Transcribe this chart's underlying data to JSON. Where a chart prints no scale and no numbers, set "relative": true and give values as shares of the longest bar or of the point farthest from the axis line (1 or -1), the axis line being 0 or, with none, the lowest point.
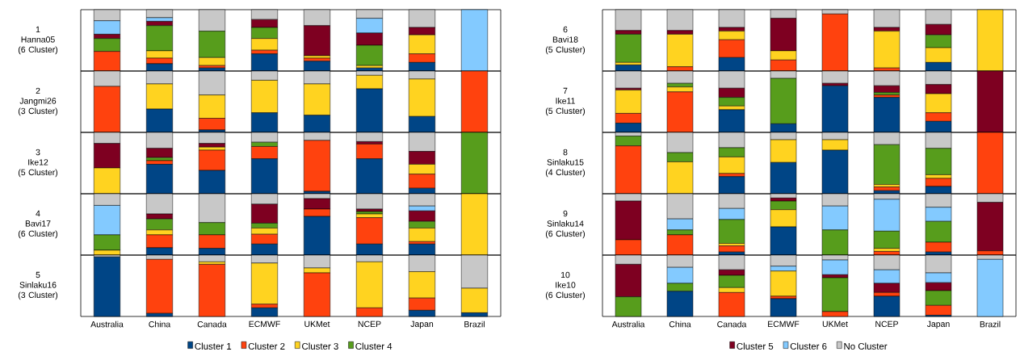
{
  "chart_data": [
    {
      "type": "bar",
      "stacked": true,
      "relative": true,
      "tick_labels": false,
      "title": "1",
      "subtitle": "Hanna05",
      "annotations": [
        "(6 Cluster)"
      ],
      "categories": [
        null,
        null,
        null,
        null,
        null,
        null,
        null,
        null
      ],
      "series": [
        {
          "color": "#004586",
          "values": [
            0,
            0.12,
            0.05,
            0.28,
            0.16,
            0.05,
            0.14,
            0
          ]
        },
        {
          "color": "#ff420e",
          "values": [
            0.32,
            0.09,
            0.04,
            0.06,
            0.05,
            0,
            0.14,
            0
          ]
        },
        {
          "color": "#ffd320",
          "values": [
            0,
            0.12,
            0.13,
            0.19,
            0.04,
            0.04,
            0.31,
            0
          ]
        },
        {
          "color": "#579d1c",
          "values": [
            0.21,
            0.41,
            0.43,
            0.18,
            0,
            0.33,
            0,
            0
          ]
        },
        {
          "color": "#7e0021",
          "values": [
            0.07,
            0.07,
            0,
            0.13,
            0.49,
            0.2,
            0.12,
            0
          ]
        },
        {
          "color": "#83caff",
          "values": [
            0.22,
            0.06,
            0,
            0,
            0,
            0.24,
            0,
            1
          ]
        },
        {
          "color": "#c8c8c8",
          "values": [
            0.18,
            0.13,
            0.35,
            0.16,
            0.26,
            0.14,
            0.29,
            0
          ]
        }
      ]
    },
    {
      "type": "bar",
      "stacked": true,
      "relative": true,
      "tick_labels": false,
      "title": "2",
      "subtitle": "Jangmi26",
      "annotations": [
        "(3 Cluster)"
      ],
      "categories": [
        null,
        null,
        null,
        null,
        null,
        null,
        null,
        null
      ],
      "series": [
        {
          "color": "#004586",
          "values": [
            0,
            0.38,
            0.04,
            0.32,
            0.28,
            0.71,
            0.26,
            0
          ]
        },
        {
          "color": "#ff420e",
          "values": [
            0.75,
            0,
            0.19,
            0,
            0,
            0,
            0,
            1
          ]
        },
        {
          "color": "#ffd320",
          "values": [
            0,
            0.41,
            0.38,
            0.53,
            0.51,
            0.22,
            0.61,
            0
          ]
        },
        {
          "color": "#579d1c",
          "values": [
            0,
            0,
            0,
            0,
            0,
            0,
            0,
            0
          ]
        },
        {
          "color": "#7e0021",
          "values": [
            0,
            0,
            0,
            0,
            0,
            0,
            0,
            0
          ]
        },
        {
          "color": "#83caff",
          "values": [
            0,
            0,
            0,
            0,
            0,
            0,
            0,
            0
          ]
        },
        {
          "color": "#c8c8c8",
          "values": [
            0.25,
            0.21,
            0.39,
            0.15,
            0.21,
            0.07,
            0.13,
            0
          ]
        }
      ]
    },
    {
      "type": "bar",
      "stacked": true,
      "relative": true,
      "tick_labels": false,
      "title": "3",
      "subtitle": "Ike12",
      "annotations": [
        "(5 Cluster)"
      ],
      "categories": [
        null,
        null,
        null,
        null,
        null,
        null,
        null,
        null
      ],
      "series": [
        {
          "color": "#004586",
          "values": [
            0,
            0.48,
            0.38,
            0.57,
            0.04,
            0.57,
            0.09,
            0
          ]
        },
        {
          "color": "#ff420e",
          "values": [
            0,
            0.06,
            0.33,
            0.2,
            0.83,
            0.24,
            0.23,
            0
          ]
        },
        {
          "color": "#ffd320",
          "values": [
            0.42,
            0,
            0.05,
            0,
            0,
            0,
            0.16,
            0
          ]
        },
        {
          "color": "#579d1c",
          "values": [
            0,
            0.05,
            0,
            0.07,
            0,
            0,
            0,
            1
          ]
        },
        {
          "color": "#7e0021",
          "values": [
            0.4,
            0.15,
            0.06,
            0,
            0,
            0.04,
            0.21,
            0
          ]
        },
        {
          "color": "#83caff",
          "values": [
            0,
            0,
            0,
            0,
            0,
            0,
            0,
            0
          ]
        },
        {
          "color": "#c8c8c8",
          "values": [
            0.18,
            0.26,
            0.18,
            0.16,
            0.13,
            0.15,
            0.31,
            0
          ]
        }
      ]
    },
    {
      "type": "bar",
      "stacked": true,
      "relative": true,
      "tick_labels": false,
      "title": "4",
      "subtitle": "Bavi17",
      "annotations": [
        "(6 Cluster)"
      ],
      "categories": [
        null,
        null,
        null,
        null,
        null,
        null,
        null,
        null
      ],
      "series": [
        {
          "color": "#004586",
          "values": [
            0,
            0.12,
            0.11,
            0.18,
            0.63,
            0.18,
            0.18,
            0
          ]
        },
        {
          "color": "#ff420e",
          "values": [
            0,
            0.21,
            0.22,
            0.16,
            0.12,
            0.43,
            0.04,
            0
          ]
        },
        {
          "color": "#ffd320",
          "values": [
            0.08,
            0.08,
            0,
            0.1,
            0,
            0.06,
            0.22,
            1
          ]
        },
        {
          "color": "#579d1c",
          "values": [
            0.25,
            0.18,
            0.2,
            0.08,
            0,
            0.04,
            0.11,
            0
          ]
        },
        {
          "color": "#7e0021",
          "values": [
            0,
            0.08,
            0,
            0.31,
            0.17,
            0.04,
            0.17,
            0
          ]
        },
        {
          "color": "#83caff",
          "values": [
            0.48,
            0,
            0,
            0,
            0,
            0,
            0.08,
            0
          ]
        },
        {
          "color": "#c8c8c8",
          "values": [
            0.19,
            0.33,
            0.47,
            0.17,
            0.08,
            0.25,
            0.2,
            0
          ]
        }
      ]
    },
    {
      "type": "bar",
      "stacked": true,
      "relative": true,
      "tick_labels": "x",
      "legend": "bottom",
      "title": "5",
      "subtitle": "Sinlaku16",
      "annotations": [
        "(3 Cluster)"
      ],
      "categories": [
        "Australia",
        "China",
        "Canada",
        "ECMWF",
        "UKMet",
        "NCEP",
        "Japan",
        "Brazil"
      ],
      "series": [
        {
          "name": "Cluster 1",
          "color": "#004586",
          "values": [
            0.97,
            0.05,
            0,
            0.14,
            0,
            0,
            0.1,
            0.06
          ]
        },
        {
          "name": "Cluster 2",
          "color": "#ff420e",
          "values": [
            0,
            0.88,
            0.85,
            0.06,
            0.71,
            0.14,
            0.2,
            0
          ]
        },
        {
          "name": "Cluster 3",
          "color": "#ffd320",
          "values": [
            0,
            0,
            0.04,
            0.67,
            0.08,
            0.75,
            0.43,
            0.4
          ]
        },
        {
          "name": "Cluster 4",
          "color": "#579d1c",
          "values": [
            0,
            0,
            0,
            0,
            0,
            0,
            0,
            0
          ]
        },
        {
          "color": "#7e0021",
          "values": [
            0,
            0,
            0,
            0,
            0,
            0,
            0,
            0
          ]
        },
        {
          "color": "#83caff",
          "values": [
            0,
            0,
            0,
            0,
            0,
            0,
            0,
            0
          ]
        },
        {
          "color": "#c8c8c8",
          "values": [
            0.03,
            0.07,
            0.11,
            0.13,
            0.21,
            0.11,
            0.27,
            0.54
          ]
        }
      ]
    },
    {
      "type": "bar",
      "stacked": true,
      "relative": true,
      "tick_labels": false,
      "title": "6",
      "subtitle": "Bavi18",
      "annotations": [
        "(5 Cluster)"
      ],
      "categories": [
        null,
        null,
        null,
        null,
        null,
        null,
        null,
        null
      ],
      "series": [
        {
          "color": "#004586",
          "values": [
            0.1,
            0,
            0.22,
            0,
            0,
            0,
            0.14,
            0
          ]
        },
        {
          "color": "#ff420e",
          "values": [
            0,
            0.07,
            0.29,
            0.18,
            0.93,
            0.05,
            0,
            0
          ]
        },
        {
          "color": "#ffd320",
          "values": [
            0.04,
            0.53,
            0.14,
            0.15,
            0,
            0.6,
            0.24,
            1
          ]
        },
        {
          "color": "#579d1c",
          "values": [
            0.46,
            0,
            0,
            0,
            0,
            0,
            0.21,
            0
          ]
        },
        {
          "color": "#7e0021",
          "values": [
            0.06,
            0.06,
            0.06,
            0.53,
            0,
            0.06,
            0.17,
            0
          ]
        },
        {
          "color": "#83caff",
          "values": [
            0,
            0,
            0,
            0,
            0,
            0,
            0,
            0
          ]
        },
        {
          "color": "#c8c8c8",
          "values": [
            0.34,
            0.34,
            0.29,
            0.14,
            0.07,
            0.29,
            0.24,
            0
          ]
        }
      ]
    },
    {
      "type": "bar",
      "stacked": true,
      "relative": true,
      "tick_labels": false,
      "title": "7",
      "subtitle": "Ike11",
      "annotations": [
        "(5 Cluster)"
      ],
      "categories": [
        null,
        null,
        null,
        null,
        null,
        null,
        null,
        null
      ],
      "series": [
        {
          "color": "#004586",
          "values": [
            0.15,
            0,
            0.37,
            0.14,
            0.76,
            0.57,
            0.18,
            0
          ]
        },
        {
          "color": "#ff420e",
          "values": [
            0.16,
            0.66,
            0,
            0,
            0,
            0.04,
            0.14,
            0
          ]
        },
        {
          "color": "#ffd320",
          "values": [
            0.38,
            0.08,
            0.06,
            0,
            0,
            0,
            0.31,
            0
          ]
        },
        {
          "color": "#579d1c",
          "values": [
            0,
            0.06,
            0.14,
            0.74,
            0,
            0.04,
            0,
            0
          ]
        },
        {
          "color": "#7e0021",
          "values": [
            0.03,
            0,
            0.15,
            0,
            0.04,
            0.11,
            0.15,
            1
          ]
        },
        {
          "color": "#83caff",
          "values": [
            0,
            0,
            0,
            0,
            0,
            0,
            0,
            0
          ]
        },
        {
          "color": "#c8c8c8",
          "values": [
            0.28,
            0.2,
            0.28,
            0.12,
            0.2,
            0.24,
            0.22,
            0
          ]
        }
      ]
    },
    {
      "type": "bar",
      "stacked": true,
      "relative": true,
      "tick_labels": false,
      "title": "8",
      "subtitle": "Sinlaku15",
      "annotations": [
        "(4 Cluster)"
      ],
      "categories": [
        null,
        null,
        null,
        null,
        null,
        null,
        null,
        null
      ],
      "series": [
        {
          "color": "#004586",
          "values": [
            0,
            0,
            0.28,
            0.51,
            0.71,
            0.05,
            0.12,
            0
          ]
        },
        {
          "color": "#ff420e",
          "values": [
            0.78,
            0,
            0.05,
            0,
            0,
            0.06,
            0.13,
            1
          ]
        },
        {
          "color": "#ffd320",
          "values": [
            0,
            0.52,
            0.27,
            0.37,
            0.17,
            0.04,
            0.06,
            0
          ]
        },
        {
          "color": "#579d1c",
          "values": [
            0.16,
            0.15,
            0.15,
            0,
            0,
            0.65,
            0.43,
            0
          ]
        },
        {
          "color": "#7e0021",
          "values": [
            0,
            0,
            0,
            0,
            0,
            0,
            0,
            0
          ]
        },
        {
          "color": "#83caff",
          "values": [
            0,
            0,
            0,
            0,
            0,
            0,
            0,
            0
          ]
        },
        {
          "color": "#c8c8c8",
          "values": [
            0.06,
            0.33,
            0.25,
            0.12,
            0.12,
            0.2,
            0.26,
            0
          ]
        }
      ]
    },
    {
      "type": "bar",
      "stacked": true,
      "relative": true,
      "tick_labels": false,
      "title": "9",
      "subtitle": "Sinlaku14",
      "annotations": [
        "(6 Cluster)"
      ],
      "categories": [
        null,
        null,
        null,
        null,
        null,
        null,
        null,
        null
      ],
      "series": [
        {
          "color": "#004586",
          "values": [
            0,
            0,
            0.05,
            0.46,
            0,
            0,
            0.05,
            0
          ]
        },
        {
          "color": "#ff420e",
          "values": [
            0.25,
            0.33,
            0.1,
            0,
            0,
            0.06,
            0.16,
            0.07
          ]
        },
        {
          "color": "#ffd320",
          "values": [
            0,
            0,
            0.04,
            0.28,
            0,
            0.05,
            0,
            0
          ]
        },
        {
          "color": "#579d1c",
          "values": [
            0,
            0.08,
            0.39,
            0.14,
            0.41,
            0.28,
            0.34,
            0
          ]
        },
        {
          "color": "#7e0021",
          "values": [
            0.63,
            0,
            0,
            0.05,
            0,
            0,
            0,
            0.79
          ]
        },
        {
          "color": "#83caff",
          "values": [
            0,
            0.18,
            0.18,
            0,
            0.39,
            0.52,
            0.23,
            0
          ]
        },
        {
          "color": "#c8c8c8",
          "values": [
            0.12,
            0.41,
            0.24,
            0.07,
            0.2,
            0.09,
            0.22,
            0.14
          ]
        }
      ]
    },
    {
      "type": "bar",
      "stacked": true,
      "relative": true,
      "tick_labels": "x",
      "legend": "bottom",
      "title": "10",
      "subtitle": "Ike10",
      "annotations": [
        "(6 Cluster)"
      ],
      "categories": [
        "Australia",
        "China",
        "Canada",
        "ECMWF",
        "UKMet",
        "NCEP",
        "Japan",
        "Brazil"
      ],
      "series": [
        {
          "color": "#004586",
          "values": [
            0,
            0.41,
            0,
            0.29,
            0,
            0.33,
            0.02,
            0
          ]
        },
        {
          "color": "#ff420e",
          "values": [
            0,
            0,
            0.39,
            0.04,
            0.08,
            0.06,
            0.16,
            0
          ]
        },
        {
          "color": "#ffd320",
          "values": [
            0,
            0,
            0.08,
            0.41,
            0,
            0,
            0,
            0
          ]
        },
        {
          "color": "#579d1c",
          "values": [
            0.32,
            0.13,
            0.2,
            0,
            0.55,
            0,
            0.24,
            0
          ]
        },
        {
          "name": "Cluster 5",
          "color": "#7e0021",
          "values": [
            0.53,
            0,
            0.09,
            0,
            0.05,
            0.15,
            0.13,
            0
          ]
        },
        {
          "name": "Cluster 6",
          "color": "#83caff",
          "values": [
            0,
            0.26,
            0,
            0.08,
            0.24,
            0.22,
            0.16,
            0.93
          ]
        },
        {
          "name": "No Cluster",
          "color": "#c8c8c8",
          "values": [
            0.15,
            0.2,
            0.24,
            0.18,
            0.08,
            0.24,
            0.29,
            0.07
          ]
        }
      ]
    }
  ]
}
